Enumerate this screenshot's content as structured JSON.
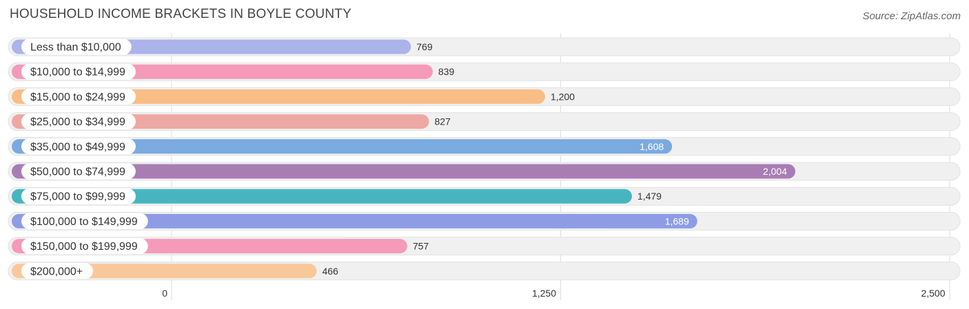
{
  "title": "HOUSEHOLD INCOME BRACKETS IN BOYLE COUNTY",
  "source": "Source: ZipAtlas.com",
  "colors": {
    "track": "#f0f0f0",
    "track_border": "#e2e2e2",
    "grid": "#dddddd",
    "label_bg": "#ffffff",
    "text": "#333333",
    "value_inside": "#ffffff"
  },
  "chart_data": {
    "type": "bar",
    "orientation": "horizontal",
    "title": "HOUSEHOLD INCOME BRACKETS IN BOYLE COUNTY",
    "xlabel": "",
    "ylabel": "",
    "xlim": [
      0,
      2500
    ],
    "ticks": [
      0,
      1250,
      2500
    ],
    "tick_labels": [
      "0",
      "1,250",
      "2,500"
    ],
    "grid": true,
    "categories": [
      "Less than $10,000",
      "$10,000 to $14,999",
      "$15,000 to $24,999",
      "$25,000 to $34,999",
      "$35,000 to $49,999",
      "$50,000 to $74,999",
      "$75,000 to $99,999",
      "$100,000 to $149,999",
      "$150,000 to $199,999",
      "$200,000+"
    ],
    "values": [
      769,
      839,
      1200,
      827,
      1608,
      2004,
      1479,
      1689,
      757,
      466
    ],
    "value_labels": [
      "769",
      "839",
      "1,200",
      "827",
      "1,608",
      "2,004",
      "1,479",
      "1,689",
      "757",
      "466"
    ],
    "bar_colors": [
      "#aab4ea",
      "#f59ab8",
      "#f9bd86",
      "#eda8a4",
      "#7aaae0",
      "#a87db3",
      "#47b5c0",
      "#8e9ce6",
      "#f59ab8",
      "#f9c89a"
    ]
  }
}
